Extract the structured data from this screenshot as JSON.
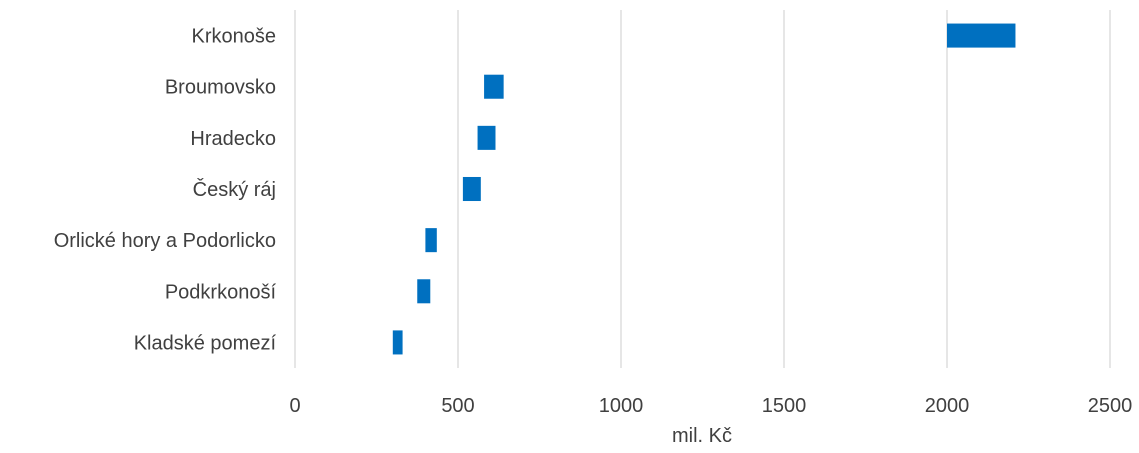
{
  "chart_data": {
    "type": "bar",
    "orientation": "horizontal",
    "categories": [
      "Krkonoše",
      "Broumovsko",
      "Hradecko",
      "Český ráj",
      "Orlické hory a Podorlicko",
      "Podkrkonoší",
      "Kladské pomezí"
    ],
    "ranges": [
      [
        2000,
        2210
      ],
      [
        580,
        640
      ],
      [
        560,
        615
      ],
      [
        515,
        570
      ],
      [
        400,
        435
      ],
      [
        375,
        415
      ],
      [
        300,
        330
      ]
    ],
    "xlabel": "mil. Kč",
    "xlim": [
      0,
      2500
    ],
    "x_ticks": [
      "0",
      "500",
      "1000",
      "1500",
      "2000",
      "2500"
    ],
    "grid": true,
    "legend": "none",
    "colors": {
      "bar": "#0070c0",
      "grid": "#d9d9d9",
      "text": "#404040"
    }
  }
}
